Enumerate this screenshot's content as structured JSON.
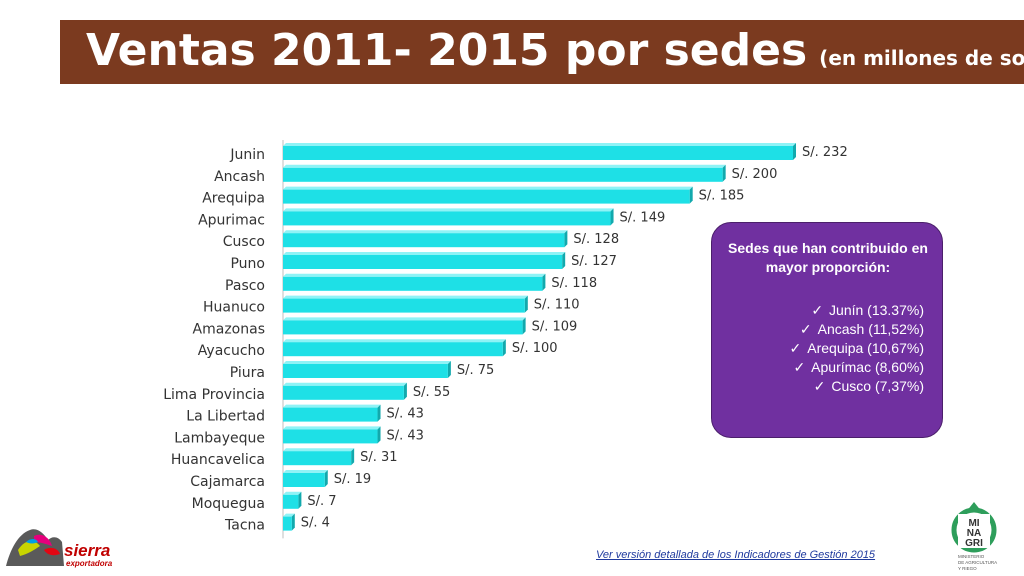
{
  "title": {
    "main": "Ventas 2011- 2015 por sedes",
    "sub": "(en millones de soles)"
  },
  "chart_data": {
    "type": "bar",
    "orientation": "horizontal",
    "categories": [
      "Junin",
      "Ancash",
      "Arequipa",
      "Apurimac",
      "Cusco",
      "Puno",
      "Pasco",
      "Huanuco",
      "Amazonas",
      "Ayacucho",
      "Piura",
      "Lima Provincia",
      "La Libertad",
      "Lambayeque",
      "Huancavelica",
      "Cajamarca",
      "Moquegua",
      "Tacna"
    ],
    "values": [
      232,
      200,
      185,
      149,
      128,
      127,
      118,
      110,
      109,
      100,
      75,
      55,
      43,
      43,
      31,
      19,
      7,
      4
    ],
    "value_labels": [
      "S/. 232",
      "S/. 200",
      "S/. 185",
      "S/. 149",
      "S/. 128",
      "S/. 127",
      "S/. 118",
      "S/. 110",
      "S/. 109",
      "S/. 100",
      "S/. 75",
      "S/. 55",
      "S/. 43",
      "S/. 43",
      "S/. 31",
      "S/. 19",
      "S/. 7",
      "S/. 4"
    ],
    "xlim": [
      0,
      232
    ],
    "bar_color": "#1ee0e6",
    "grid": false
  },
  "callout": {
    "title": "Sedes que han contribuido en mayor proporción:",
    "items": [
      "Junín (13.37%)",
      "Ancash (11,52%)",
      "Arequipa (10,67%)",
      "Apurímac (8,60%)",
      "Cusco (7,37%)"
    ],
    "check_icon": "checkmark-icon",
    "background": "#7030a0"
  },
  "footer": {
    "link_text": "Ver versión detallada de los Indicadores de Gestión 2015"
  },
  "logos": {
    "sierra": {
      "line1": "sierra",
      "line2": "exportadora"
    },
    "minagri": {
      "line1": "MI",
      "line2": "NA",
      "line3": "GRI",
      "caption1": "MINISTERIO",
      "caption2": "DE AGRICULTURA",
      "caption3": "Y RIEGO"
    }
  }
}
